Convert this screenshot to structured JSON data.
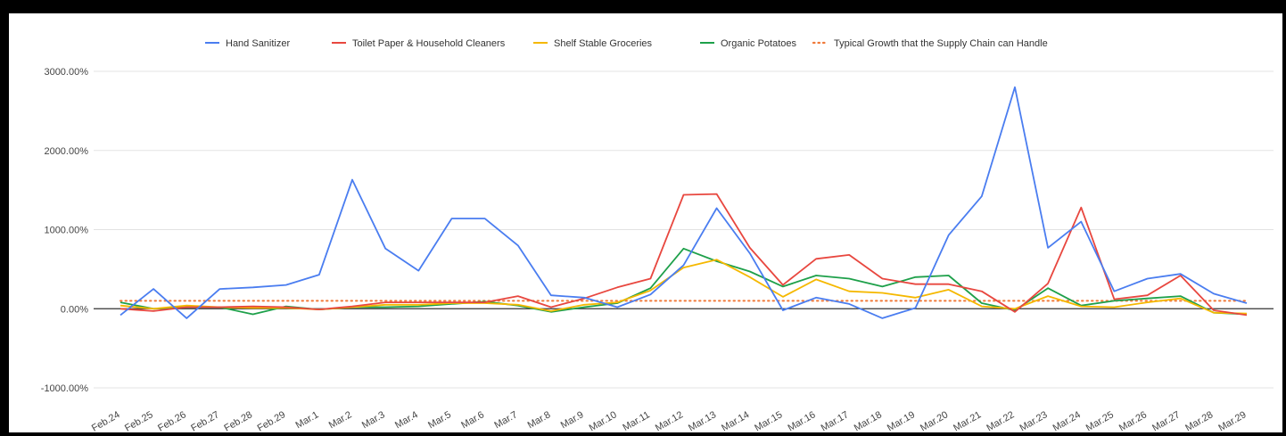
{
  "chart_data": {
    "type": "line",
    "title": "",
    "xlabel": "",
    "ylabel": "",
    "ylim": [
      -1000,
      3000
    ],
    "y_ticks": [
      "3000.00%",
      "2000.00%",
      "1000.00%",
      "0.00%",
      "-1000.00%"
    ],
    "y_tick_values": [
      3000,
      2000,
      1000,
      0,
      -1000
    ],
    "grid": true,
    "legend_position": "top",
    "categories": [
      "Feb.24",
      "Feb.25",
      "Feb.26",
      "Feb.27",
      "Feb.28",
      "Feb.29",
      "Mar.1",
      "Mar.2",
      "Mar.3",
      "Mar.4",
      "Mar.5",
      "Mar.6",
      "Mar.7",
      "Mar.8",
      "Mar.9",
      "Mar.10",
      "Mar.11",
      "Mar.12",
      "Mar.13",
      "Mar.14",
      "Mar.15",
      "Mar.16",
      "Mar.17",
      "Mar.18",
      "Mar.19",
      "Mar.20",
      "Mar.21",
      "Mar.22",
      "Mar.23",
      "Mar.24",
      "Mar.25",
      "Mar.26",
      "Mar.27",
      "Mar.28",
      "Mar.29"
    ],
    "series": [
      {
        "name": "Hand Sanitizer",
        "color": "#4a7df0",
        "style": "solid",
        "values": [
          -80,
          250,
          -120,
          250,
          270,
          300,
          430,
          1630,
          760,
          480,
          1140,
          1140,
          800,
          170,
          140,
          20,
          180,
          550,
          1270,
          700,
          -20,
          140,
          60,
          -120,
          10,
          930,
          1420,
          2800,
          770,
          1100,
          220,
          380,
          440,
          190,
          70
        ]
      },
      {
        "name": "Toilet Paper & Household Cleaners",
        "color": "#e8473f",
        "style": "solid",
        "values": [
          0,
          -30,
          20,
          20,
          30,
          20,
          -10,
          30,
          80,
          80,
          80,
          80,
          160,
          20,
          130,
          270,
          380,
          1440,
          1450,
          770,
          300,
          630,
          680,
          380,
          310,
          310,
          220,
          -40,
          320,
          1280,
          120,
          170,
          420,
          -20,
          -80
        ]
      },
      {
        "name": "Shelf Stable Groceries",
        "color": "#f5b800",
        "style": "solid",
        "values": [
          40,
          0,
          40,
          20,
          10,
          10,
          -10,
          20,
          50,
          50,
          70,
          70,
          50,
          -30,
          50,
          80,
          230,
          520,
          620,
          400,
          150,
          370,
          220,
          200,
          140,
          240,
          30,
          0,
          160,
          30,
          20,
          80,
          130,
          -50,
          -60
        ]
      },
      {
        "name": "Organic Potatoes",
        "color": "#1ea04a",
        "style": "solid",
        "values": [
          80,
          0,
          20,
          20,
          -70,
          30,
          -10,
          20,
          20,
          30,
          60,
          90,
          40,
          -40,
          20,
          70,
          260,
          760,
          600,
          470,
          280,
          420,
          380,
          280,
          400,
          420,
          70,
          -20,
          260,
          40,
          100,
          130,
          160,
          -50,
          -70
        ]
      },
      {
        "name": "Typical Growth that the Supply Chain can Handle",
        "color": "#f07a3a",
        "style": "dotted",
        "values": [
          100,
          100,
          100,
          100,
          100,
          100,
          100,
          100,
          100,
          100,
          100,
          100,
          100,
          100,
          100,
          100,
          100,
          100,
          100,
          100,
          100,
          100,
          100,
          100,
          100,
          100,
          100,
          100,
          100,
          100,
          100,
          100,
          100,
          100,
          100
        ]
      }
    ]
  }
}
